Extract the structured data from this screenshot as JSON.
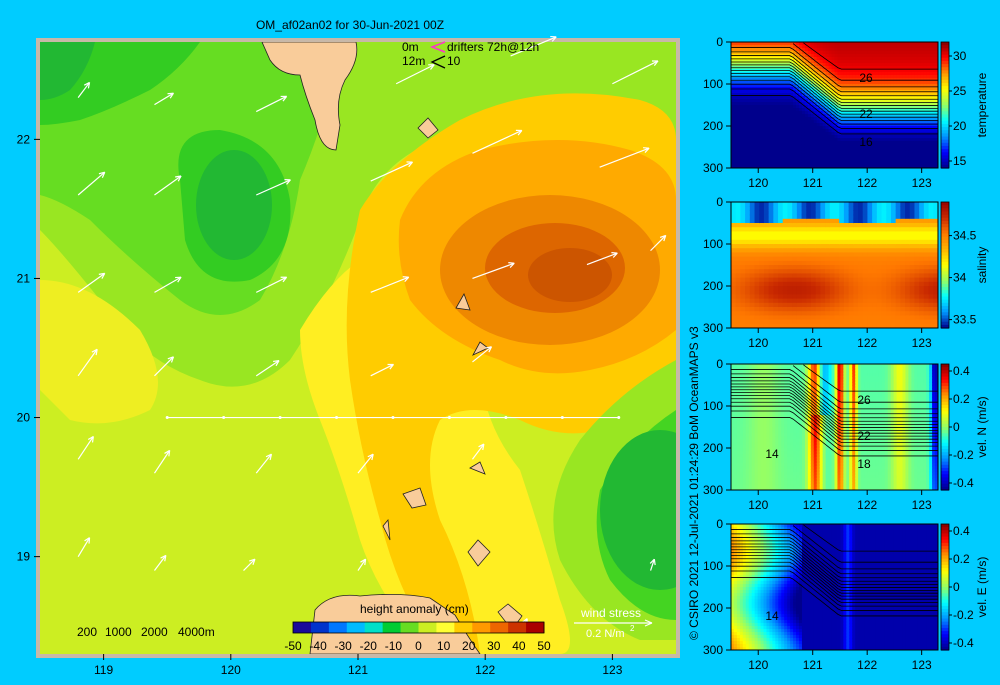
{
  "title": "OM_af02an02 for 30-Jun-2021 00Z",
  "credit": "© CSIRO 2021  12-Jul-2021 01:24:29 BoM OceanMAPS v3",
  "colors": {
    "background": "#00ccff",
    "land": "#f9cc9a",
    "frame": "#c8b8a8"
  },
  "map": {
    "legend_drifters": {
      "depth0": "0m",
      "depth1": "12m",
      "text": "drifters 72h@12h",
      "count": "10"
    },
    "depth_legend": [
      "200",
      "1000",
      "2000",
      "4000m"
    ],
    "colorbar": {
      "label": "height anomaly (cm)",
      "ticks": [
        "-50",
        "-40",
        "-30",
        "-20",
        "-10",
        "0",
        "10",
        "20",
        "30",
        "40",
        "50"
      ],
      "colors": [
        "#1a0a9a",
        "#0033cc",
        "#0077ff",
        "#00bbff",
        "#00e0c8",
        "#00cc33",
        "#66dd22",
        "#ccee22",
        "#ffff33",
        "#ffcc00",
        "#ff9900",
        "#ee6600",
        "#cc3300",
        "#aa0000"
      ]
    },
    "wind_legend": {
      "label": "wind stress",
      "scale": "0.2 N/m",
      "unit_sup": "2"
    }
  },
  "chart_data": [
    {
      "type": "heatmap",
      "name": "height anomaly map",
      "x_ticks": [
        "119",
        "120",
        "121",
        "122",
        "123"
      ],
      "y_ticks": [
        "22",
        "21",
        "20",
        "19"
      ],
      "xlim": [
        118.5,
        123.5
      ],
      "ylim": [
        18.3,
        22.7
      ],
      "contours_cm": [
        {
          "x": 118.85,
          "y": 22.4,
          "v": 0
        },
        {
          "x": 119.8,
          "y": 21.5,
          "v": 5
        },
        {
          "x": 120.0,
          "y": 21.5,
          "v": 0
        },
        {
          "x": 122.45,
          "y": 20.95,
          "v": 35
        },
        {
          "x": 122.0,
          "y": 21.0,
          "v": 25
        },
        {
          "x": 123.2,
          "y": 19.3,
          "v": 5
        },
        {
          "x": 119.0,
          "y": 20.7,
          "v": 15
        },
        {
          "x": 120.5,
          "y": 19.5,
          "v": 20
        },
        {
          "x": 121.5,
          "y": 20.5,
          "v": 25
        }
      ],
      "section_line": {
        "lat": 20,
        "lon": [
          119.5,
          123.05
        ]
      },
      "wind_vectors": [
        {
          "x": 118.8,
          "y": 22.3,
          "u": 0.3,
          "v": 0.4
        },
        {
          "x": 119.4,
          "y": 22.25,
          "u": 0.5,
          "v": 0.3
        },
        {
          "x": 120.2,
          "y": 22.2,
          "u": 0.8,
          "v": 0.4
        },
        {
          "x": 121.3,
          "y": 22.4,
          "u": 1.0,
          "v": 0.5
        },
        {
          "x": 122.2,
          "y": 22.6,
          "u": 1.2,
          "v": 0.5
        },
        {
          "x": 123.0,
          "y": 22.4,
          "u": 1.2,
          "v": 0.6
        },
        {
          "x": 118.8,
          "y": 21.6,
          "u": 0.7,
          "v": 0.6
        },
        {
          "x": 119.4,
          "y": 21.6,
          "u": 0.7,
          "v": 0.5
        },
        {
          "x": 120.2,
          "y": 21.6,
          "u": 0.9,
          "v": 0.4
        },
        {
          "x": 121.1,
          "y": 21.7,
          "u": 1.1,
          "v": 0.5
        },
        {
          "x": 121.9,
          "y": 21.9,
          "u": 1.3,
          "v": 0.6
        },
        {
          "x": 122.9,
          "y": 21.8,
          "u": 1.3,
          "v": 0.5
        },
        {
          "x": 118.8,
          "y": 20.9,
          "u": 0.7,
          "v": 0.5
        },
        {
          "x": 119.4,
          "y": 20.9,
          "u": 0.7,
          "v": 0.4
        },
        {
          "x": 120.2,
          "y": 20.9,
          "u": 0.8,
          "v": 0.4
        },
        {
          "x": 121.1,
          "y": 20.9,
          "u": 1.0,
          "v": 0.4
        },
        {
          "x": 121.9,
          "y": 21.0,
          "u": 1.1,
          "v": 0.4
        },
        {
          "x": 122.8,
          "y": 21.1,
          "u": 0.8,
          "v": 0.3
        },
        {
          "x": 123.3,
          "y": 21.2,
          "u": 0.4,
          "v": 0.4
        },
        {
          "x": 118.8,
          "y": 20.3,
          "u": 0.5,
          "v": 0.7
        },
        {
          "x": 119.4,
          "y": 20.3,
          "u": 0.5,
          "v": 0.5
        },
        {
          "x": 120.2,
          "y": 20.3,
          "u": 0.6,
          "v": 0.4
        },
        {
          "x": 121.1,
          "y": 20.3,
          "u": 0.6,
          "v": 0.3
        },
        {
          "x": 121.9,
          "y": 20.4,
          "u": 0.5,
          "v": 0.4
        },
        {
          "x": 118.8,
          "y": 19.7,
          "u": 0.4,
          "v": 0.6
        },
        {
          "x": 119.4,
          "y": 19.6,
          "u": 0.4,
          "v": 0.6
        },
        {
          "x": 120.2,
          "y": 19.6,
          "u": 0.4,
          "v": 0.5
        },
        {
          "x": 121.0,
          "y": 19.6,
          "u": 0.4,
          "v": 0.5
        },
        {
          "x": 121.9,
          "y": 19.7,
          "u": 0.3,
          "v": 0.4
        },
        {
          "x": 118.8,
          "y": 19.0,
          "u": 0.3,
          "v": 0.5
        },
        {
          "x": 119.4,
          "y": 18.9,
          "u": 0.3,
          "v": 0.4
        },
        {
          "x": 120.1,
          "y": 18.9,
          "u": 0.3,
          "v": 0.3
        },
        {
          "x": 121.0,
          "y": 18.9,
          "u": 0.2,
          "v": 0.3
        },
        {
          "x": 123.3,
          "y": 18.9,
          "u": 0.1,
          "v": 0.3
        },
        {
          "x": 122.3,
          "y": 18.5,
          "u": 0.1,
          "v": 0.2
        }
      ]
    },
    {
      "type": "heatmap",
      "name": "temperature section",
      "x_ticks": [
        "120",
        "121",
        "122",
        "123"
      ],
      "y_ticks": [
        "0",
        "100",
        "200",
        "300"
      ],
      "xlim": [
        119.5,
        123.3
      ],
      "ylim": [
        300,
        0
      ],
      "colorbar_label": "temperature",
      "colorbar_ticks": [
        "30",
        "25",
        "20",
        "15"
      ],
      "clim": [
        14,
        32
      ],
      "contour_labels": [
        "26",
        "22",
        "16"
      ]
    },
    {
      "type": "heatmap",
      "name": "salinity section",
      "x_ticks": [
        "120",
        "121",
        "122",
        "123"
      ],
      "y_ticks": [
        "0",
        "100",
        "200",
        "300"
      ],
      "xlim": [
        119.5,
        123.3
      ],
      "ylim": [
        300,
        0
      ],
      "colorbar_label": "salinity",
      "colorbar_ticks": [
        "34.5",
        "34",
        "33.5"
      ],
      "clim": [
        33.4,
        34.9
      ]
    },
    {
      "type": "heatmap",
      "name": "northward velocity section",
      "x_ticks": [
        "120",
        "121",
        "122",
        "123"
      ],
      "y_ticks": [
        "0",
        "100",
        "200",
        "300"
      ],
      "xlim": [
        119.5,
        123.3
      ],
      "ylim": [
        300,
        0
      ],
      "colorbar_label": "vel. N (m/s)",
      "colorbar_ticks": [
        "0.4",
        "0.2",
        "0",
        "-0.2",
        "-0.4"
      ],
      "clim": [
        -0.45,
        0.45
      ],
      "contour_labels": [
        "26",
        "22",
        "18",
        "14"
      ]
    },
    {
      "type": "heatmap",
      "name": "eastward velocity section",
      "x_ticks": [
        "120",
        "121",
        "122",
        "123"
      ],
      "y_ticks": [
        "0",
        "100",
        "200",
        "300"
      ],
      "xlim": [
        119.5,
        123.3
      ],
      "ylim": [
        300,
        0
      ],
      "colorbar_label": "vel. E (m/s)",
      "colorbar_ticks": [
        "0.4",
        "0.2",
        "0",
        "-0.2",
        "-0.4"
      ],
      "clim": [
        -0.45,
        0.45
      ],
      "contour_labels": [
        "14"
      ]
    }
  ]
}
